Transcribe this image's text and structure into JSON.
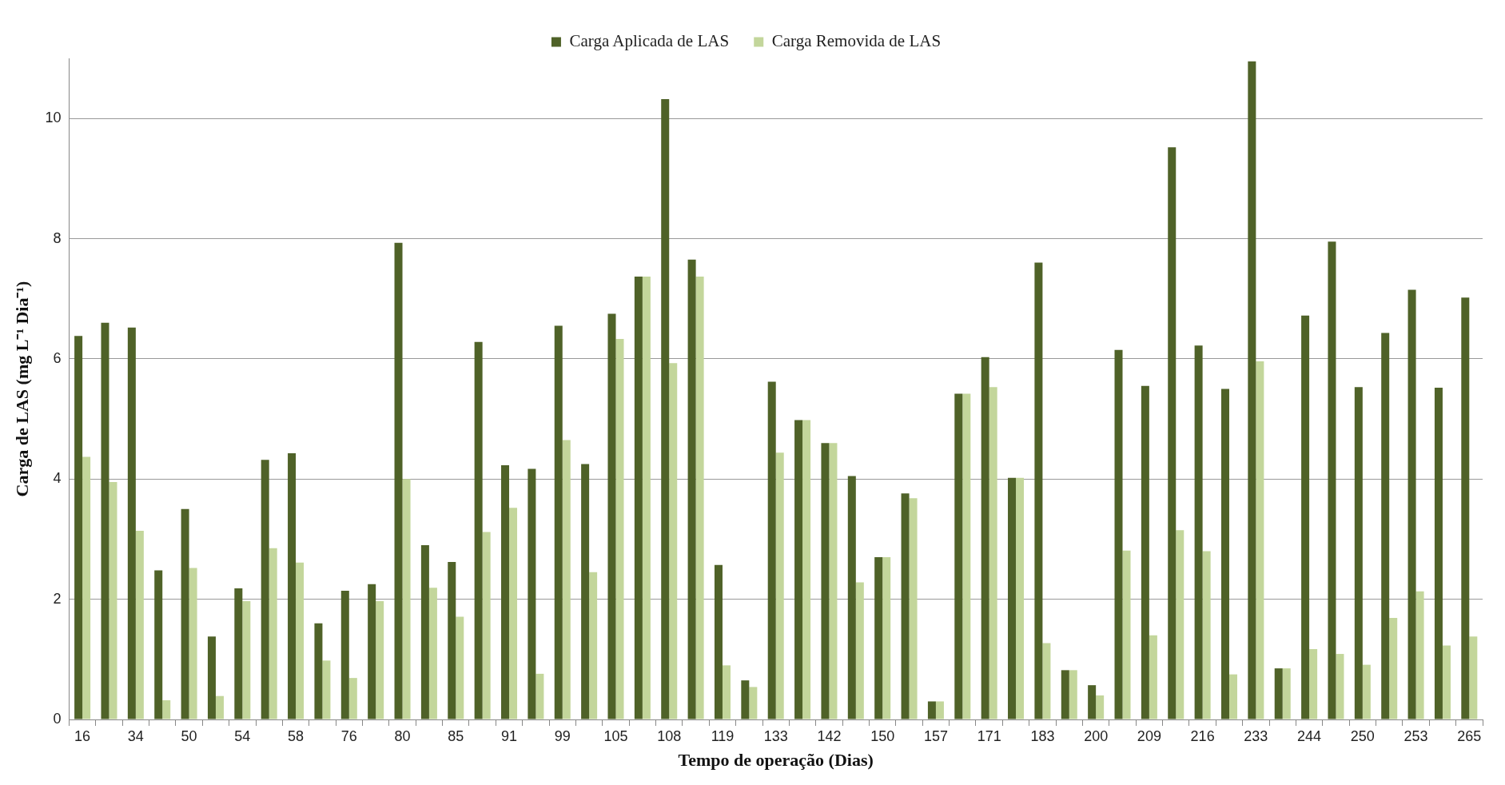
{
  "chart_data": {
    "type": "bar",
    "xlabel": "Tempo de operação (Dias)",
    "ylabel": "Carga de LAS (mg L⁻¹ Dia⁻¹)",
    "categories": [
      "16",
      null,
      "34",
      null,
      "50",
      null,
      "54",
      null,
      "58",
      null,
      "76",
      null,
      "80",
      null,
      "85",
      null,
      "91",
      null,
      "99",
      null,
      "105",
      null,
      "108",
      null,
      "119",
      null,
      "133",
      null,
      "142",
      null,
      "150",
      null,
      "157",
      null,
      "171",
      null,
      "183",
      null,
      "200",
      null,
      "209",
      null,
      "216",
      null,
      "233",
      null,
      "244",
      null,
      "250",
      null,
      "253",
      null,
      "265"
    ],
    "series": [
      {
        "name": "Carga Aplicada de LAS",
        "color": "#4f6228",
        "values": [
          6.38,
          6.6,
          6.52,
          2.48,
          3.5,
          1.38,
          2.18,
          4.32,
          4.43,
          1.6,
          2.14,
          2.25,
          7.93,
          2.9,
          2.62,
          6.28,
          4.23,
          4.17,
          6.55,
          4.25,
          6.75,
          7.37,
          10.32,
          7.65,
          2.57,
          0.65,
          5.62,
          4.98,
          4.6,
          4.05,
          2.7,
          3.76,
          0.3,
          5.42,
          6.03,
          4.02,
          7.6,
          0.82,
          0.57,
          6.15,
          5.55,
          9.52,
          6.22,
          5.5,
          10.95,
          0.85,
          6.72,
          7.95,
          5.53,
          6.43,
          7.15,
          5.52,
          7.02
        ]
      },
      {
        "name": "Carga Removida de LAS",
        "color": "#c3d69b",
        "values": [
          4.37,
          3.95,
          3.14,
          0.32,
          2.52,
          0.39,
          1.97,
          2.85,
          2.61,
          0.98,
          0.69,
          1.97,
          4.0,
          2.19,
          1.71,
          3.12,
          3.52,
          0.76,
          4.65,
          2.45,
          6.33,
          7.37,
          5.93,
          7.37,
          0.9,
          0.54,
          4.44,
          4.98,
          4.6,
          2.28,
          2.7,
          3.68,
          0.3,
          5.42,
          5.53,
          4.02,
          1.27,
          0.82,
          0.4,
          2.81,
          1.4,
          3.15,
          2.8,
          0.75,
          5.96,
          0.85,
          1.17,
          1.09,
          0.91,
          1.69,
          2.13,
          1.23,
          1.38
        ]
      }
    ],
    "ylim": [
      0,
      11
    ],
    "yticks": [
      0,
      2,
      4,
      6,
      8,
      10
    ],
    "grid": "y",
    "legend": "top"
  }
}
